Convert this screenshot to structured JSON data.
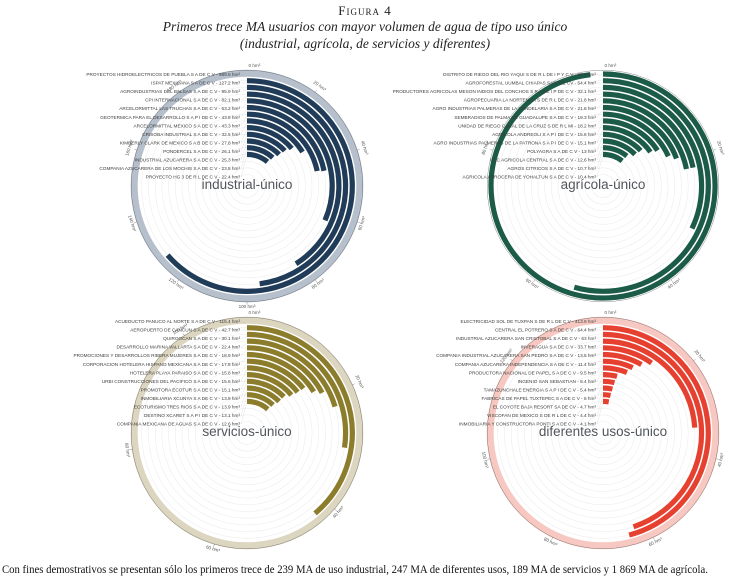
{
  "figure": {
    "label": "Figura 4",
    "title_line1": "Primeros trece MA usuarios con mayor volumen de agua de tipo uso único",
    "title_line2": "(industrial, agrícola, de servicios y diferentes)",
    "footnote": "Con fines demostrativos se presentan sólo los primeros trece de 239 MA de uso industrial, 247 MA de diferentes usos, 189 MA de servicios y 1 869 MA de agrícola."
  },
  "chart_data": [
    {
      "type": "radial-bar",
      "title": "industrial-único",
      "unit": "hm³",
      "axis_start_label": "0 hm³",
      "bar_color": "#203c58",
      "overflow_color": "#b6c0cc",
      "axis_max": 200,
      "axis_ticks": [
        20,
        40,
        60,
        80,
        100,
        120,
        140,
        160,
        180
      ],
      "grid": true,
      "legend_position": "left-labels",
      "entries": [
        {
          "name": "PROYECTOS HIDROELECTRICOS DE PUEBLA S A DE C V",
          "value": 989.5
        },
        {
          "name": "ISPAT MEXICANA S A DE C V",
          "value": 127.2
        },
        {
          "name": "AGROINDUSTRIAS DEL BALSAS S A DE C V",
          "value": 95.9
        },
        {
          "name": "CPI INTERNACIONAL S A DE C V",
          "value": 82.1
        },
        {
          "name": "ARCELORMITTAL LAS TRUCHAS S A DE C V",
          "value": 63.2
        },
        {
          "name": "GEOTERMICA PARA EL DESARROLLO S A P I DE C V",
          "value": 43.8
        },
        {
          "name": "ARCELORMITTAL MEXICO S A DE C V",
          "value": 43.3
        },
        {
          "name": "CRISOBA INDUSTRIAL S A DE C V",
          "value": 32.5
        },
        {
          "name": "KIMBERLY CLARK DE MEXICO S A B DE C V",
          "value": 27.8
        },
        {
          "name": "PONDERCEL S A DE C V",
          "value": 26.1
        },
        {
          "name": "INDUSTRIAL AZUCARERA S A DE C V",
          "value": 25.3
        },
        {
          "name": "COMPANIA AZUCARERA DE LOS MOCHIS S A DE C V",
          "value": 23.5
        },
        {
          "name": "PROYECTO HG 3 DE R L DE C V",
          "value": 22.4
        }
      ]
    },
    {
      "type": "radial-bar",
      "title": "agrícola-único",
      "unit": "hm³",
      "axis_start_label": "0 hm³",
      "bar_color": "#1b5b47",
      "overflow_color": "#b9d4c9",
      "axis_max": 100,
      "axis_ticks": [
        20,
        40,
        60,
        80
      ],
      "grid": true,
      "legend_position": "left-labels",
      "entries": [
        {
          "name": "DISTRITO DE RIEGO DEL RIO YAQUI S DE R L DE I P Y C V",
          "value": 98.2
        },
        {
          "name": "AGROFORESTAL UUMBAL CHIAPAS SAPI DE CV",
          "value": 54.4
        },
        {
          "name": "PRODUCTORES AGRICOLAS MESON INDIOS DEL CONCHOS S R L DE I P DE C V",
          "value": 32.1
        },
        {
          "name": "AGROPECUARIA LA NORTENITA S DE R L DE C V",
          "value": 21.8
        },
        {
          "name": "AGRO INDUSTRIAS PALMERAS DE LA CANDELARIA S A DE C V",
          "value": 21.8
        },
        {
          "name": "SEMBRADIOS DE PALMA DE GUADALUPE S A DE C V",
          "value": 19.3
        },
        {
          "name": "UNIDAD DE RIEGO CANAL DE LA CRUZ S DE R L MI",
          "value": 18.2
        },
        {
          "name": "AGRICOLA ANDREOLI S A P I DE C V",
          "value": 15.8
        },
        {
          "name": "AGRO INDUSTRIAS PALMERAS DE LA PATRONA S A P I DE C V",
          "value": 15.1
        },
        {
          "name": "POLYAGRA S A DE C V",
          "value": 13
        },
        {
          "name": "ITLC AGRICOLA CENTRAL S A DE C V",
          "value": 12.6
        },
        {
          "name": "AGROS CITRICOS S A DE C V",
          "value": 10.7
        },
        {
          "name": "AGRICOLA ARROCERA DE YOHALTUN S A DE C V",
          "value": 10.4
        }
      ]
    },
    {
      "type": "radial-bar",
      "title": "servicios-único",
      "unit": "hm³",
      "axis_start_label": "0 hm³",
      "bar_color": "#8c7d2d",
      "overflow_color": "#dcd5bf",
      "axis_max": 110,
      "axis_ticks": [
        20,
        40,
        60,
        80,
        100
      ],
      "grid": true,
      "legend_position": "left-labels",
      "entries": [
        {
          "name": "ACUEDUCTO PANUCO AL NORTE S A DE C V",
          "value": 115.4
        },
        {
          "name": "AEROPUERTO DE CANCUN S A DE C V",
          "value": 42.7
        },
        {
          "name": "QUIROOCAN S A DE C V",
          "value": 30.1
        },
        {
          "name": "DESARROLLO MARINA VALLARTA S A DE C V",
          "value": 22.4
        },
        {
          "name": "PROMOCIONES Y DESARROLLOS RIBERA MUJERES S A DE C V",
          "value": 18.9
        },
        {
          "name": "CORPORACION HOTELERA HISPANO MEXICANA S A DE C V",
          "value": 17.8
        },
        {
          "name": "HOTELERA PLAYA PARAISO S A DE C V",
          "value": 15.8
        },
        {
          "name": "URBI CONSTRUCCIONES DEL PACIFICO S A DE C V",
          "value": 15.6
        },
        {
          "name": "PROMOTORA ECOTUR S A DE C V",
          "value": 15.1
        },
        {
          "name": "INMOBILIARIA XCUNYA S A DE C V",
          "value": 13.9
        },
        {
          "name": "ECOTURISMO TRES RIOS S A DE C V",
          "value": 13.9
        },
        {
          "name": "DESTINO XCARET S A P I DE C V",
          "value": 13.1
        },
        {
          "name": "COMPANIA MEXICANA DE AGUAS S A DE C V",
          "value": 12.6
        }
      ]
    },
    {
      "type": "radial-bar",
      "title": "diferentes usos-único",
      "unit": "hm³",
      "axis_start_label": "0 hm³",
      "bar_color": "#e64130",
      "overflow_color": "#f6c8c1",
      "axis_max": 140,
      "axis_ticks": [
        20,
        40,
        60,
        80,
        100,
        120
      ],
      "grid": true,
      "legend_position": "left-labels",
      "entries": [
        {
          "name": "ELECTRICIDAD SOL DE TUXPAN S DE R L DE C V",
          "value": 413.9
        },
        {
          "name": "CENTRAL EL POTRERO S A DE C V",
          "value": 64.4
        },
        {
          "name": "INDUSTRIAL AZUCARERA SAN CRISTOBAL S A DE C V",
          "value": 63
        },
        {
          "name": "INVERAGUA S A DE C V",
          "value": 33.7
        },
        {
          "name": "COMPANIA INDUSTRIAL AZUCARERA SAN PEDRO S A DE C V",
          "value": 13.5
        },
        {
          "name": "COMPANIA AZUCARERA INDEPENDENCIA S A DE C V",
          "value": 11.4
        },
        {
          "name": "PRODUCTORA NACIONAL DE PAPEL S A DE C V",
          "value": 9.5
        },
        {
          "name": "INGENIO SAN SEBASTIAN",
          "value": 8.4
        },
        {
          "name": "TAMAZUNCHALE ENERGIA S A P I DE C V",
          "value": 5.4
        },
        {
          "name": "FABRICAS DE PAPEL TUXTEPEC S A DE C V",
          "value": 5
        },
        {
          "name": "EL COYOTE BAJA RESORT SA DE CV",
          "value": 4.7
        },
        {
          "name": "VISCOFAN DE MEXICO S DE R L DE C V",
          "value": 4.4
        },
        {
          "name": "INMOBILIARIA Y CONSTRUCTORA PONTI S A DE C V",
          "value": 4.1
        }
      ]
    }
  ]
}
